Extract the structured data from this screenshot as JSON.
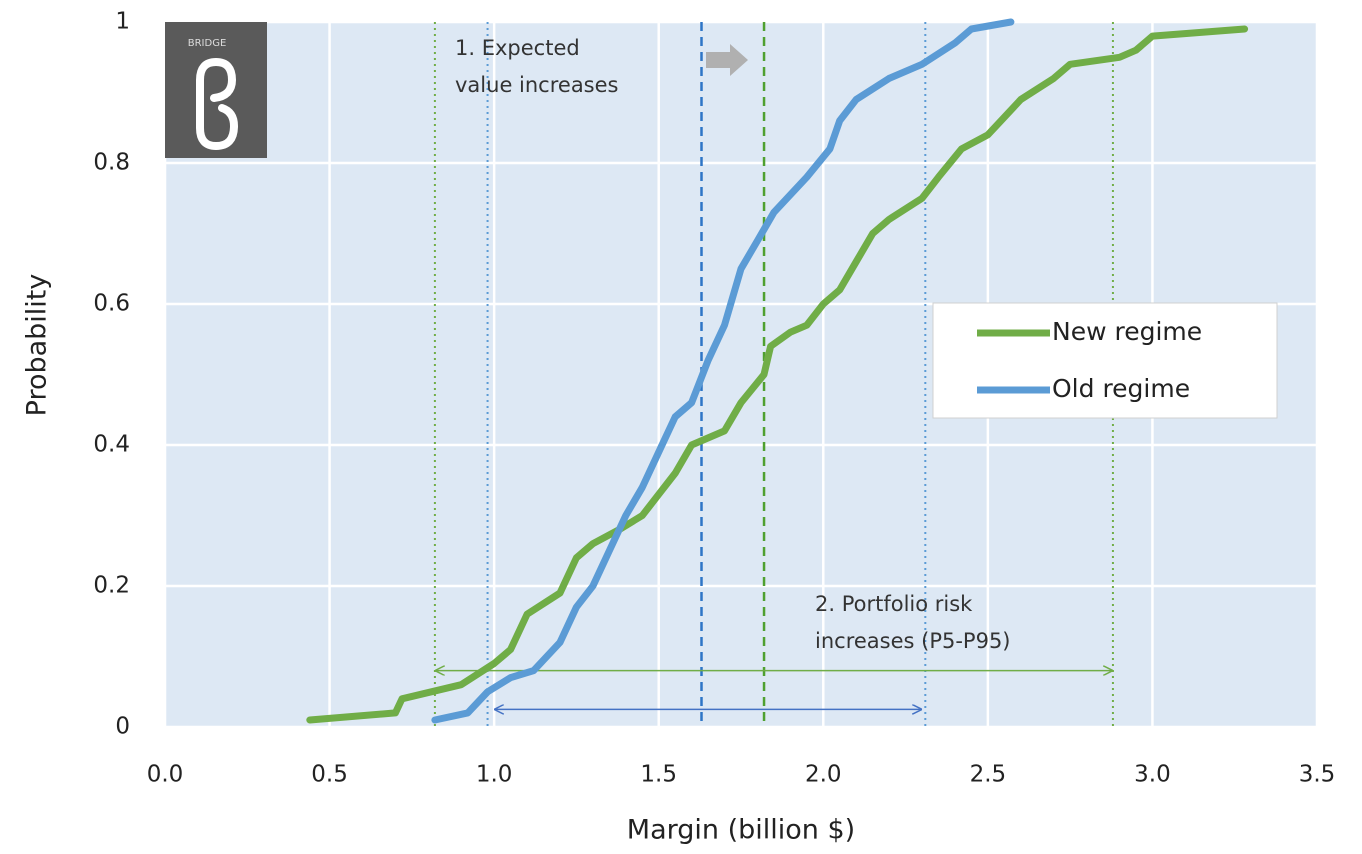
{
  "chart_data": {
    "type": "line",
    "x_label": "Margin (billion $)",
    "y_label": "Probability",
    "logo_text": "BRIDGE",
    "xlim": [
      0,
      3.5
    ],
    "ylim": [
      0,
      1
    ],
    "xticks": [
      {
        "value": 0,
        "label": "0.0"
      },
      {
        "value": 0.5,
        "label": "0.5"
      },
      {
        "value": 1,
        "label": "1.0"
      },
      {
        "value": 1.5,
        "label": "1.5"
      },
      {
        "value": 2,
        "label": "2.0"
      },
      {
        "value": 2.5,
        "label": "2.5"
      },
      {
        "value": 3,
        "label": "3.0"
      },
      {
        "value": 3.5,
        "label": "3.5"
      }
    ],
    "yticks": [
      0,
      0.2,
      0.4,
      0.6,
      0.8,
      1
    ],
    "grid": true,
    "legend": "right",
    "series": [
      {
        "name": "New regime",
        "color": "#70ad47",
        "x": [
          0.44,
          0.7,
          0.72,
          0.9,
          1.0,
          1.05,
          1.1,
          1.2,
          1.25,
          1.3,
          1.38,
          1.45,
          1.5,
          1.55,
          1.6,
          1.7,
          1.75,
          1.82,
          1.84,
          1.9,
          1.95,
          2.0,
          2.05,
          2.1,
          2.15,
          2.2,
          2.3,
          2.35,
          2.42,
          2.5,
          2.6,
          2.7,
          2.75,
          2.9,
          2.95,
          3.0,
          3.28
        ],
        "values": [
          0.01,
          0.02,
          0.04,
          0.06,
          0.09,
          0.11,
          0.16,
          0.19,
          0.24,
          0.26,
          0.28,
          0.3,
          0.33,
          0.36,
          0.4,
          0.42,
          0.46,
          0.5,
          0.54,
          0.56,
          0.57,
          0.6,
          0.62,
          0.66,
          0.7,
          0.72,
          0.75,
          0.78,
          0.82,
          0.84,
          0.89,
          0.92,
          0.94,
          0.95,
          0.96,
          0.98,
          0.99
        ]
      },
      {
        "name": "Old regime",
        "color": "#5b9bd5",
        "x": [
          0.82,
          0.92,
          0.98,
          1.05,
          1.12,
          1.2,
          1.25,
          1.3,
          1.35,
          1.4,
          1.45,
          1.5,
          1.55,
          1.6,
          1.65,
          1.7,
          1.75,
          1.8,
          1.85,
          1.95,
          2.02,
          2.05,
          2.1,
          2.2,
          2.3,
          2.4,
          2.45,
          2.57
        ],
        "values": [
          0.01,
          0.02,
          0.05,
          0.07,
          0.08,
          0.12,
          0.17,
          0.2,
          0.25,
          0.3,
          0.34,
          0.39,
          0.44,
          0.46,
          0.52,
          0.57,
          0.65,
          0.69,
          0.73,
          0.78,
          0.82,
          0.86,
          0.89,
          0.92,
          0.94,
          0.97,
          0.99,
          1.0
        ]
      }
    ],
    "reference_lines": [
      {
        "value": 0.82,
        "color": "#70ad47",
        "style": "dotted"
      },
      {
        "value": 2.88,
        "color": "#70ad47",
        "style": "dotted"
      },
      {
        "value": 0.98,
        "color": "#5b9bd5",
        "style": "dotted"
      },
      {
        "value": 2.31,
        "color": "#5b9bd5",
        "style": "dotted"
      },
      {
        "value": 1.63,
        "color": "#2e75c6",
        "style": "dashed"
      },
      {
        "value": 1.82,
        "color": "#4fa030",
        "style": "dashed"
      }
    ],
    "ranges": [
      {
        "from": 0.82,
        "to": 2.88,
        "y": 0.08,
        "color": "#70ad47"
      },
      {
        "from": 1.0,
        "to": 2.3,
        "y": 0.025,
        "color": "#4472c4"
      }
    ],
    "annotations": [
      {
        "lines": [
          "1. Expected",
          "value increases"
        ]
      },
      {
        "lines": [
          "2. Portfolio risk",
          "increases (P5-P95)"
        ]
      }
    ]
  }
}
